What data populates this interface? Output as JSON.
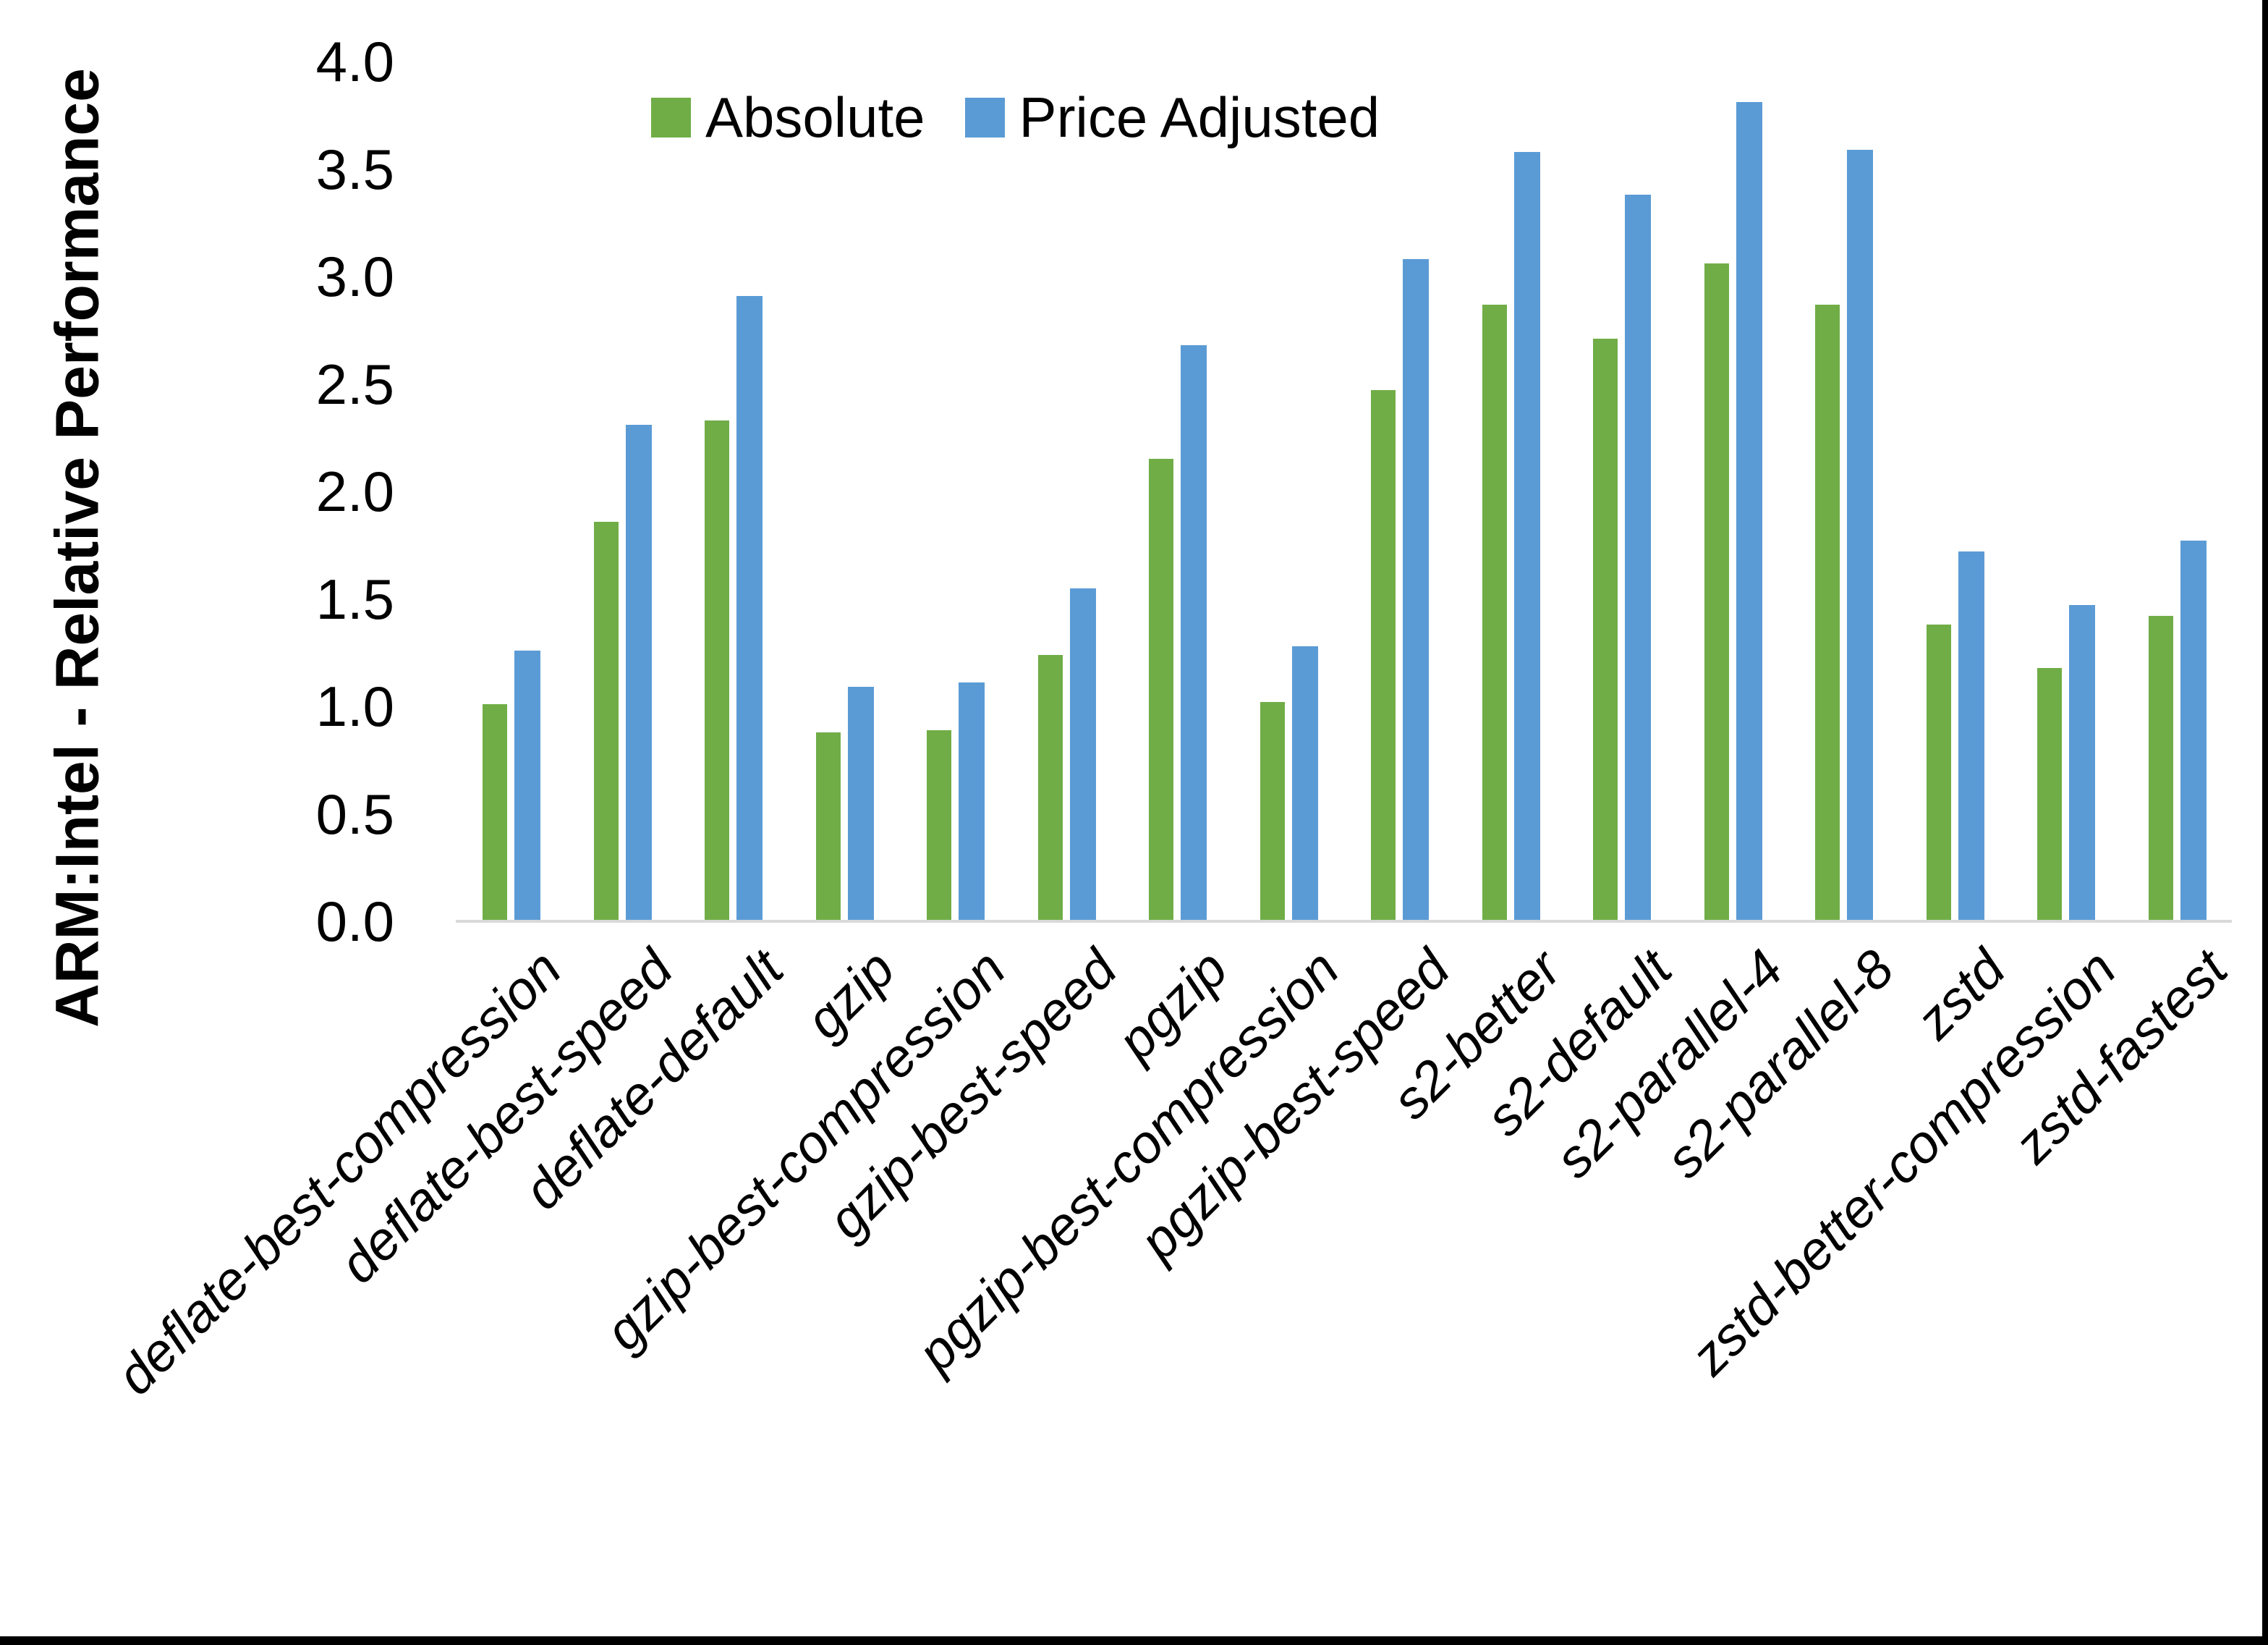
{
  "chart_data": {
    "type": "bar",
    "title": "",
    "xlabel": "",
    "ylabel": "ARM:Intel - Relative Performance",
    "ylim": [
      0.0,
      4.0
    ],
    "ytick_step": 0.5,
    "yticks": [
      "0.0",
      "0.5",
      "1.0",
      "1.5",
      "2.0",
      "2.5",
      "3.0",
      "3.5",
      "4.0"
    ],
    "grid": false,
    "legend_position": "top-center",
    "categories": [
      "deflate-best-compression",
      "deflate-best-speed",
      "deflate-default",
      "gzip",
      "gzip-best-compression",
      "gzip-best-speed",
      "pgzip",
      "pgzip-best-compression",
      "pgzip-best-speed",
      "s2-better",
      "s2-default",
      "s2-parallel-4",
      "s2-parallel-8",
      "zstd",
      "zstd-better-compression",
      "zstd-fastest"
    ],
    "series": [
      {
        "name": "Absolute",
        "color": "#70AD47",
        "values": [
          1.01,
          1.86,
          2.33,
          0.88,
          0.89,
          1.24,
          2.15,
          1.02,
          2.47,
          2.87,
          2.71,
          3.06,
          2.87,
          1.38,
          1.18,
          1.42
        ]
      },
      {
        "name": "Price Adjusted",
        "color": "#5B9BD5",
        "values": [
          1.26,
          2.31,
          2.91,
          1.09,
          1.11,
          1.55,
          2.68,
          1.28,
          3.08,
          3.58,
          3.38,
          3.81,
          3.59,
          1.72,
          1.47,
          1.77
        ]
      }
    ],
    "axis_line_color": "#D9D9D9"
  }
}
